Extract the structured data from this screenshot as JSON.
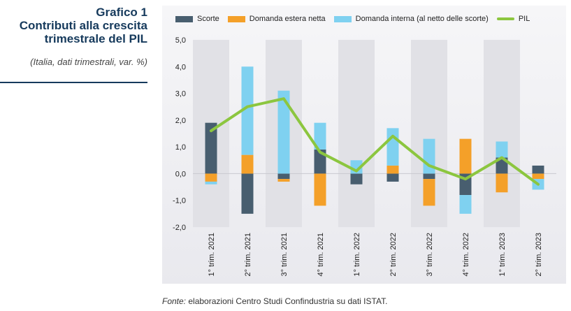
{
  "side_panel": {
    "title_line1": "Grafico 1",
    "title_line2": "Contributi alla crescita",
    "title_line3": "trimestrale del PIL",
    "subtitle": "(Italia, dati trimestrali, var. %)"
  },
  "source": {
    "label": "Fonte:",
    "text": " elaborazioni Centro Studi Confindustria su dati ISTAT."
  },
  "colors": {
    "scorte": "#485e6f",
    "domanda_estera": "#f4a029",
    "domanda_interna": "#7fd1f0",
    "pil": "#8cc63f",
    "band": "#e1e1e6"
  },
  "chart_data": {
    "type": "bar",
    "stacked": true,
    "categories": [
      "1° trim. 2021",
      "2° trim. 2021",
      "3° trim. 2021",
      "4° trim. 2021",
      "1° trim. 2022",
      "2° trim. 2022",
      "3° trim. 2022",
      "4° trim. 2022",
      "1° trim. 2023",
      "2° trim. 2023"
    ],
    "series": [
      {
        "name": "Scorte",
        "type": "bar",
        "values": [
          1.9,
          -1.5,
          -0.2,
          0.9,
          -0.4,
          -0.3,
          -0.2,
          -0.8,
          0.6,
          0.3
        ]
      },
      {
        "name": "Domanda estera netta",
        "type": "bar",
        "values": [
          -0.3,
          0.7,
          -0.1,
          -1.2,
          0.0,
          0.3,
          -1.0,
          1.3,
          -0.7,
          -0.2
        ]
      },
      {
        "name": "Domanda interna (al netto delle scorte)",
        "type": "bar",
        "values": [
          -0.1,
          3.3,
          3.1,
          1.0,
          0.5,
          1.4,
          1.3,
          -0.7,
          0.6,
          -0.4
        ]
      },
      {
        "name": "PIL",
        "type": "line",
        "values": [
          1.6,
          2.5,
          2.8,
          0.8,
          0.1,
          1.4,
          0.3,
          -0.2,
          0.6,
          -0.4
        ]
      }
    ],
    "y_ticks": [
      "5,0",
      "4,0",
      "3,0",
      "2,0",
      "1,0",
      "0,0",
      "-1,0",
      "-2,0"
    ],
    "ylim": [
      -2,
      5
    ],
    "legend_position": "top",
    "alternating_bands": true
  }
}
